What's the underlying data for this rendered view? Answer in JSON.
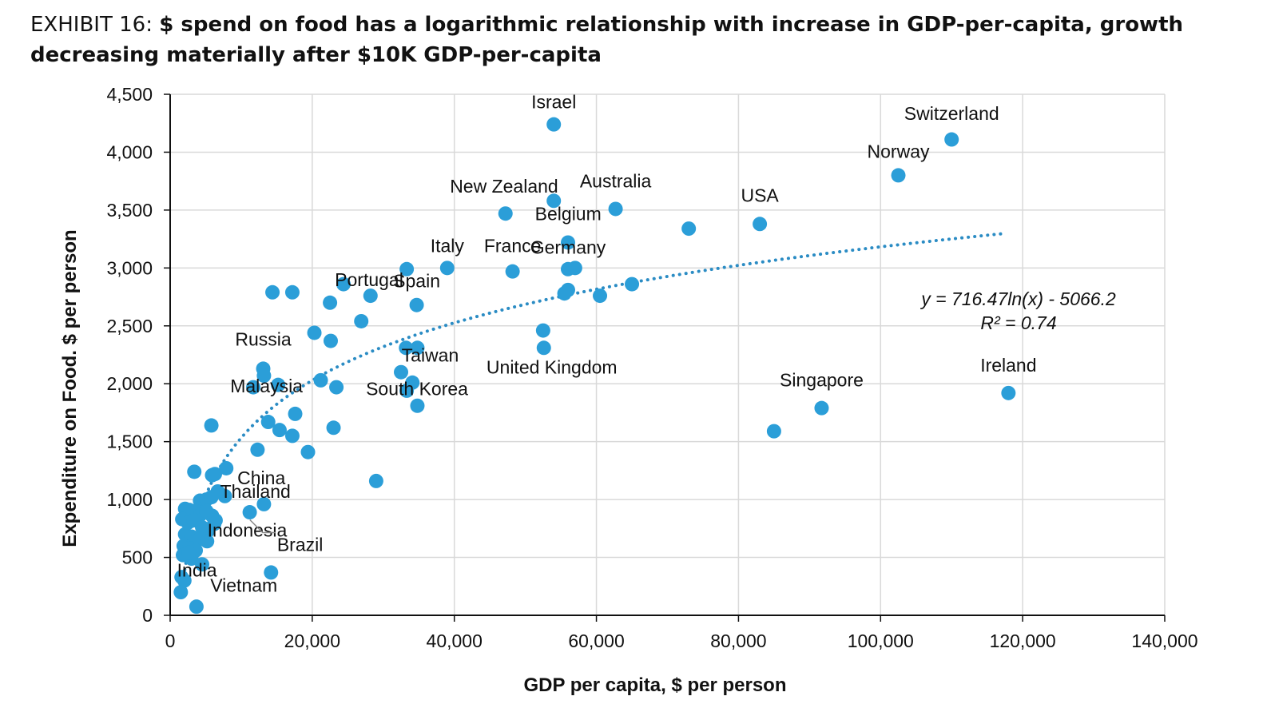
{
  "header": {
    "exhibit": "EXHIBIT 16:",
    "title": "$ spend on food has a logarithmic relationship with increase in GDP-per-capita, growth decreasing materially after $10K GDP-per-capita"
  },
  "chart_data": {
    "type": "scatter",
    "xlabel": "GDP per capita, $ per person",
    "ylabel": "Expenditure on Food. $ per person",
    "xlim": [
      0,
      140000
    ],
    "ylim": [
      0,
      4500
    ],
    "x_ticks": [
      "0",
      "20,000",
      "40,000",
      "60,000",
      "80,000",
      "100,000",
      "120,000",
      "140,000"
    ],
    "y_ticks": [
      "0",
      "500",
      "1,000",
      "1,500",
      "2,000",
      "2,500",
      "3,000",
      "3,500",
      "4,000",
      "4,500"
    ],
    "grid": true,
    "marker_color": "#2B9ED8",
    "trendline": {
      "type": "logarithmic",
      "a": 716.47,
      "b": -5066.2,
      "x_range": [
        1500,
        117000
      ],
      "equation_label": "y = 716.47ln(x) - 5066.2",
      "r2_label": "R² = 0.74",
      "color": "#2B8CC4"
    },
    "labels": [
      {
        "text": "Israel",
        "x": 54000,
        "y": 4240
      },
      {
        "text": "Switzerland",
        "x": 110000,
        "y": 4100
      },
      {
        "text": "Norway",
        "x": 102500,
        "y": 3800
      },
      {
        "text": "New Zealand",
        "x": 47000,
        "y": 3470
      },
      {
        "text": "Australia",
        "x": 62700,
        "y": 3510
      },
      {
        "text": "USA",
        "x": 83000,
        "y": 3380
      },
      {
        "text": "Belgium",
        "x": 54000,
        "y": 3580
      },
      {
        "text": "Italy",
        "x": 39000,
        "y": 3000
      },
      {
        "text": "France",
        "x": 48200,
        "y": 2970
      },
      {
        "text": "Portugal",
        "x": 28000,
        "y": 2760
      },
      {
        "text": "Spain",
        "x": 34700,
        "y": 2680
      },
      {
        "text": "Germany",
        "x": 56000,
        "y": 3000
      },
      {
        "text": "Russia",
        "x": 13100,
        "y": 2130
      },
      {
        "text": "Taiwan",
        "x": 34800,
        "y": 2310
      },
      {
        "text": "South Korea",
        "x": 32500,
        "y": 2100
      },
      {
        "text": "United Kingdom",
        "x": 52600,
        "y": 2310
      },
      {
        "text": "Singapore",
        "x": 91700,
        "y": 1790
      },
      {
        "text": "Ireland",
        "x": 118000,
        "y": 1920
      },
      {
        "text": "Malaysia",
        "x": 13000,
        "y": 2000
      },
      {
        "text": "China",
        "x": 8000,
        "y": 1270
      },
      {
        "text": "Thailand",
        "x": 6700,
        "y": 1070
      },
      {
        "text": "Indonesia",
        "x": 5800,
        "y": 880
      },
      {
        "text": "India",
        "x": 2100,
        "y": 680
      },
      {
        "text": "Brazil",
        "x": 11000,
        "y": 880
      },
      {
        "text": "Vietnam",
        "x": 3400,
        "y": 680
      }
    ],
    "points": [
      [
        54000,
        4240
      ],
      [
        110000,
        4110
      ],
      [
        102500,
        3800
      ],
      [
        54000,
        3580
      ],
      [
        47200,
        3470
      ],
      [
        62700,
        3510
      ],
      [
        83000,
        3380
      ],
      [
        73000,
        3340
      ],
      [
        56000,
        3220
      ],
      [
        39000,
        3000
      ],
      [
        33300,
        2990
      ],
      [
        48200,
        2970
      ],
      [
        56000,
        2990
      ],
      [
        57000,
        3000
      ],
      [
        56000,
        2810
      ],
      [
        55500,
        2780
      ],
      [
        60500,
        2760
      ],
      [
        65000,
        2860
      ],
      [
        24400,
        2860
      ],
      [
        28200,
        2760
      ],
      [
        34700,
        2680
      ],
      [
        14400,
        2790
      ],
      [
        17200,
        2790
      ],
      [
        22500,
        2700
      ],
      [
        26900,
        2540
      ],
      [
        20300,
        2440
      ],
      [
        22600,
        2370
      ],
      [
        52500,
        2460
      ],
      [
        52600,
        2310
      ],
      [
        33200,
        2310
      ],
      [
        34800,
        2310
      ],
      [
        13100,
        2130
      ],
      [
        13200,
        2070
      ],
      [
        15200,
        1990
      ],
      [
        21200,
        2030
      ],
      [
        23400,
        1970
      ],
      [
        11700,
        1970
      ],
      [
        32500,
        2100
      ],
      [
        34100,
        2010
      ],
      [
        33300,
        1940
      ],
      [
        34800,
        1810
      ],
      [
        91700,
        1790
      ],
      [
        85000,
        1590
      ],
      [
        118000,
        1920
      ],
      [
        13800,
        1670
      ],
      [
        15400,
        1600
      ],
      [
        17600,
        1740
      ],
      [
        17200,
        1550
      ],
      [
        23000,
        1620
      ],
      [
        12300,
        1430
      ],
      [
        19400,
        1410
      ],
      [
        5800,
        1640
      ],
      [
        29000,
        1160
      ],
      [
        3400,
        1240
      ],
      [
        5900,
        1210
      ],
      [
        6300,
        1220
      ],
      [
        7900,
        1270
      ],
      [
        6700,
        1070
      ],
      [
        7700,
        1030
      ],
      [
        13200,
        960
      ],
      [
        11200,
        890
      ],
      [
        4200,
        990
      ],
      [
        5100,
        1000
      ],
      [
        5800,
        1020
      ],
      [
        2100,
        920
      ],
      [
        2700,
        910
      ],
      [
        3600,
        900
      ],
      [
        4300,
        870
      ],
      [
        5100,
        900
      ],
      [
        5900,
        860
      ],
      [
        6400,
        820
      ],
      [
        1700,
        830
      ],
      [
        2500,
        800
      ],
      [
        3300,
        820
      ],
      [
        4500,
        760
      ],
      [
        5300,
        730
      ],
      [
        6200,
        790
      ],
      [
        2100,
        700
      ],
      [
        3000,
        680
      ],
      [
        4200,
        660
      ],
      [
        5200,
        640
      ],
      [
        1900,
        600
      ],
      [
        2700,
        580
      ],
      [
        3600,
        560
      ],
      [
        2100,
        520
      ],
      [
        3000,
        490
      ],
      [
        1800,
        520
      ],
      [
        2600,
        540
      ],
      [
        4500,
        440
      ],
      [
        14200,
        370
      ],
      [
        1600,
        330
      ],
      [
        2000,
        300
      ],
      [
        1500,
        200
      ],
      [
        3700,
        75
      ]
    ]
  }
}
